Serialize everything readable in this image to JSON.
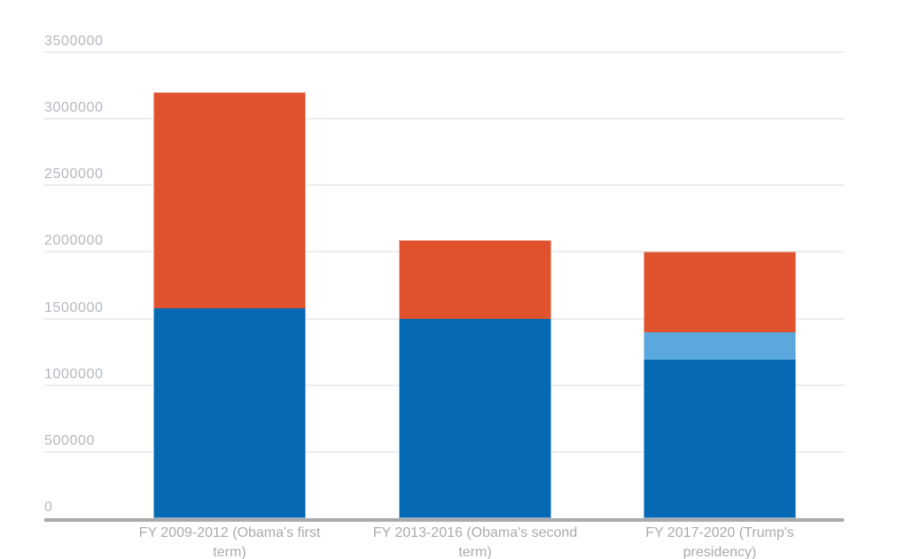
{
  "chart_data": {
    "type": "bar",
    "stacked": true,
    "title": "",
    "xlabel": "",
    "ylabel": "",
    "categories": [
      "FY 2009-2012 (Obama's first term)",
      "FY 2013-2016 (Obama's second term)",
      "FY 2017-2020 (Trump's presidency)"
    ],
    "series": [
      {
        "name": "blue-bottom-segment",
        "color": "#0569B3",
        "values": [
          1580000,
          1500000,
          1190000
        ]
      },
      {
        "name": "light-blue-middle-segment",
        "color": "#5AA8DE",
        "values": [
          0,
          0,
          210000
        ]
      },
      {
        "name": "red-top-segment",
        "color": "#E0522D",
        "values": [
          1620000,
          590000,
          600000
        ]
      }
    ],
    "ylim": [
      0,
      3500000
    ],
    "yticks": [
      0,
      500000,
      1000000,
      1500000,
      2000000,
      2500000,
      3000000,
      3500000
    ],
    "ytick_labels": [
      "0",
      "500000",
      "1000000",
      "1500000",
      "2000000",
      "2500000",
      "3000000",
      "3500000"
    ],
    "grid": true,
    "legend_position": "none"
  },
  "colors": {
    "background": "#FFFFFF",
    "grid_line": "#EDEDED",
    "axis_line": "#ABABAB",
    "y_tick_label": "#B3B8BE",
    "x_category_label": "#A8ABAF",
    "bar_blue": "#0569B3",
    "bar_light_blue": "#5AA8DE",
    "bar_red": "#E0522D"
  }
}
